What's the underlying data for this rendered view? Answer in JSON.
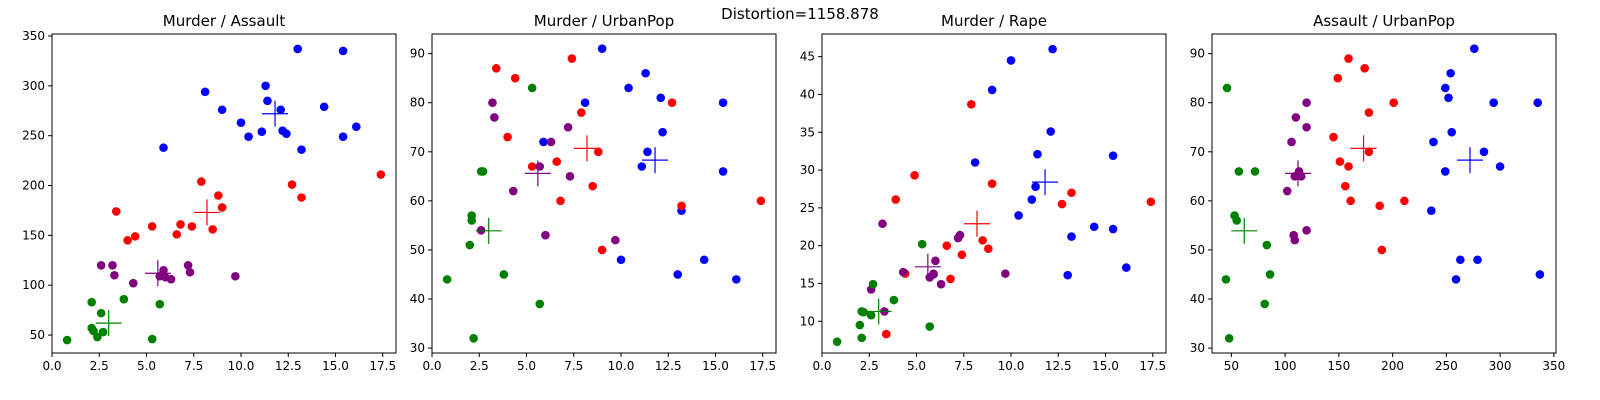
{
  "figure": {
    "suptitle": "Distortion=1158.878",
    "colors": {
      "blue": "#0000ff",
      "red": "#ff0000",
      "green": "#008000",
      "purple": "#800080"
    }
  },
  "chart_data": [
    {
      "type": "scatter",
      "title": "Murder / Assault",
      "xlim": [
        0,
        18.2
      ],
      "ylim": [
        32,
        352
      ],
      "xticks": [
        0.0,
        2.5,
        5.0,
        7.5,
        10.0,
        12.5,
        15.0,
        17.5
      ],
      "xtick_labels": [
        "0.0",
        "2.5",
        "5.0",
        "7.5",
        "10.0",
        "12.5",
        "15.0",
        "17.5"
      ],
      "yticks": [
        50,
        100,
        150,
        200,
        250,
        300,
        350
      ],
      "ytick_labels": [
        "50",
        "100",
        "150",
        "200",
        "250",
        "300",
        "350"
      ],
      "series": [
        {
          "color": "#0000ff",
          "points": [
            [
              13.0,
              337
            ],
            [
              15.4,
              335
            ],
            [
              11.3,
              300
            ],
            [
              8.1,
              294
            ],
            [
              11.4,
              285
            ],
            [
              14.4,
              279
            ],
            [
              12.1,
              276
            ],
            [
              9.0,
              276
            ],
            [
              10.0,
              263
            ],
            [
              16.1,
              259
            ],
            [
              12.2,
              255
            ],
            [
              11.1,
              254
            ],
            [
              12.4,
              252
            ],
            [
              10.4,
              249
            ],
            [
              15.4,
              249
            ],
            [
              13.2,
              236
            ],
            [
              5.9,
              238
            ]
          ]
        },
        {
          "color": "#ff0000",
          "points": [
            [
              17.4,
              211
            ],
            [
              12.7,
              201
            ],
            [
              7.9,
              204
            ],
            [
              8.8,
              190
            ],
            [
              13.2,
              188
            ],
            [
              9.0,
              178
            ],
            [
              8.5,
              156
            ],
            [
              6.8,
              161
            ],
            [
              7.4,
              159
            ],
            [
              6.6,
              151
            ],
            [
              5.3,
              159
            ],
            [
              3.4,
              174
            ],
            [
              4.4,
              149
            ],
            [
              4.0,
              145
            ]
          ]
        },
        {
          "color": "#800080",
          "points": [
            [
              2.6,
              120
            ],
            [
              3.2,
              120
            ],
            [
              5.9,
              115
            ],
            [
              7.2,
              120
            ],
            [
              3.3,
              110
            ],
            [
              7.3,
              113
            ],
            [
              5.7,
              109
            ],
            [
              6.3,
              106
            ],
            [
              9.7,
              109
            ],
            [
              6.0,
              108
            ],
            [
              4.3,
              102
            ]
          ]
        },
        {
          "color": "#008000",
          "points": [
            [
              2.1,
              83
            ],
            [
              3.8,
              86
            ],
            [
              5.7,
              81
            ],
            [
              2.6,
              72
            ],
            [
              2.1,
              57
            ],
            [
              2.2,
              54
            ],
            [
              2.7,
              53
            ],
            [
              2.4,
              48
            ],
            [
              5.3,
              46
            ],
            [
              0.8,
              45
            ]
          ]
        }
      ],
      "centroids": [
        {
          "color": "#0000ff",
          "point": [
            11.8,
            272
          ]
        },
        {
          "color": "#ff0000",
          "point": [
            8.2,
            173
          ]
        },
        {
          "color": "#800080",
          "point": [
            5.6,
            112
          ]
        },
        {
          "color": "#008000",
          "point": [
            3.0,
            62
          ]
        }
      ]
    },
    {
      "type": "scatter",
      "title": "Murder / UrbanPop",
      "xlim": [
        0,
        18.2
      ],
      "ylim": [
        29,
        94
      ],
      "xticks": [
        0.0,
        2.5,
        5.0,
        7.5,
        10.0,
        12.5,
        15.0,
        17.5
      ],
      "xtick_labels": [
        "0.0",
        "2.5",
        "5.0",
        "7.5",
        "10.0",
        "12.5",
        "15.0",
        "17.5"
      ],
      "yticks": [
        30,
        40,
        50,
        60,
        70,
        80,
        90
      ],
      "ytick_labels": [
        "30",
        "40",
        "50",
        "60",
        "70",
        "80",
        "90"
      ],
      "series": [
        {
          "color": "#0000ff",
          "points": [
            [
              9.0,
              91
            ],
            [
              11.3,
              86
            ],
            [
              10.4,
              83
            ],
            [
              12.1,
              81
            ],
            [
              8.1,
              80
            ],
            [
              15.4,
              80
            ],
            [
              12.2,
              74
            ],
            [
              5.9,
              72
            ],
            [
              11.4,
              70
            ],
            [
              11.1,
              67
            ],
            [
              15.4,
              66
            ],
            [
              13.2,
              58
            ],
            [
              10.0,
              48
            ],
            [
              14.4,
              48
            ],
            [
              13.0,
              45
            ],
            [
              16.1,
              44
            ]
          ]
        },
        {
          "color": "#ff0000",
          "points": [
            [
              3.4,
              87
            ],
            [
              7.4,
              89
            ],
            [
              4.4,
              85
            ],
            [
              12.7,
              80
            ],
            [
              7.9,
              78
            ],
            [
              4.0,
              73
            ],
            [
              8.8,
              70
            ],
            [
              6.6,
              68
            ],
            [
              5.3,
              67
            ],
            [
              8.5,
              63
            ],
            [
              6.8,
              60
            ],
            [
              17.4,
              60
            ],
            [
              13.2,
              59
            ],
            [
              9.0,
              50
            ]
          ]
        },
        {
          "color": "#800080",
          "points": [
            [
              3.2,
              80
            ],
            [
              3.3,
              77
            ],
            [
              7.2,
              75
            ],
            [
              6.3,
              72
            ],
            [
              5.7,
              67
            ],
            [
              7.3,
              65
            ],
            [
              4.3,
              62
            ],
            [
              2.6,
              54
            ],
            [
              6.0,
              53
            ],
            [
              9.7,
              52
            ]
          ]
        },
        {
          "color": "#008000",
          "points": [
            [
              5.3,
              83
            ],
            [
              2.6,
              66
            ],
            [
              2.7,
              66
            ],
            [
              2.1,
              57
            ],
            [
              2.1,
              56
            ],
            [
              2.0,
              51
            ],
            [
              3.8,
              45
            ],
            [
              0.8,
              44
            ],
            [
              5.7,
              39
            ],
            [
              2.2,
              32
            ]
          ]
        }
      ],
      "centroids": [
        {
          "color": "#0000ff",
          "point": [
            11.8,
            68.3
          ]
        },
        {
          "color": "#ff0000",
          "point": [
            8.2,
            70.7
          ]
        },
        {
          "color": "#800080",
          "point": [
            5.6,
            65.6
          ]
        },
        {
          "color": "#008000",
          "point": [
            3.0,
            53.9
          ]
        }
      ]
    },
    {
      "type": "scatter",
      "title": "Murder / Rape",
      "xlim": [
        0,
        18.2
      ],
      "ylim": [
        5.8,
        48
      ],
      "xticks": [
        0.0,
        2.5,
        5.0,
        7.5,
        10.0,
        12.5,
        15.0,
        17.5
      ],
      "xtick_labels": [
        "0.0",
        "2.5",
        "5.0",
        "7.5",
        "10.0",
        "12.5",
        "15.0",
        "17.5"
      ],
      "yticks": [
        10,
        15,
        20,
        25,
        30,
        35,
        40,
        45
      ],
      "ytick_labels": [
        "10",
        "15",
        "20",
        "25",
        "30",
        "35",
        "40",
        "45"
      ],
      "series": [
        {
          "color": "#0000ff",
          "points": [
            [
              12.2,
              46.0
            ],
            [
              10.0,
              44.5
            ],
            [
              9.0,
              40.6
            ],
            [
              12.1,
              35.1
            ],
            [
              11.4,
              32.1
            ],
            [
              15.4,
              31.9
            ],
            [
              8.1,
              31.0
            ],
            [
              11.3,
              27.8
            ],
            [
              11.1,
              26.1
            ],
            [
              10.4,
              24.0
            ],
            [
              14.4,
              22.5
            ],
            [
              15.4,
              22.2
            ],
            [
              13.2,
              21.2
            ],
            [
              16.1,
              17.1
            ],
            [
              13.0,
              16.1
            ],
            [
              5.9,
              16.2
            ]
          ]
        },
        {
          "color": "#ff0000",
          "points": [
            [
              7.9,
              38.7
            ],
            [
              4.9,
              29.3
            ],
            [
              9.0,
              28.2
            ],
            [
              13.2,
              27.0
            ],
            [
              3.9,
              26.1
            ],
            [
              17.4,
              25.8
            ],
            [
              12.7,
              25.5
            ],
            [
              8.5,
              20.7
            ],
            [
              6.6,
              20.0
            ],
            [
              8.8,
              19.6
            ],
            [
              7.4,
              18.8
            ],
            [
              6.8,
              15.6
            ],
            [
              4.4,
              16.3
            ],
            [
              3.4,
              8.3
            ]
          ]
        },
        {
          "color": "#800080",
          "points": [
            [
              3.2,
              22.9
            ],
            [
              7.3,
              21.4
            ],
            [
              7.2,
              21.0
            ],
            [
              6.0,
              18.0
            ],
            [
              4.3,
              16.5
            ],
            [
              9.7,
              16.3
            ],
            [
              5.9,
              16.3
            ],
            [
              5.7,
              15.8
            ],
            [
              6.3,
              14.9
            ],
            [
              3.3,
              11.3
            ],
            [
              2.6,
              14.2
            ]
          ]
        },
        {
          "color": "#008000",
          "points": [
            [
              5.3,
              20.2
            ],
            [
              2.7,
              14.9
            ],
            [
              3.8,
              12.8
            ],
            [
              2.1,
              11.3
            ],
            [
              2.2,
              11.2
            ],
            [
              2.6,
              10.8
            ],
            [
              2.0,
              9.5
            ],
            [
              5.7,
              9.3
            ],
            [
              2.1,
              7.8
            ],
            [
              0.8,
              7.3
            ]
          ]
        }
      ],
      "centroids": [
        {
          "color": "#0000ff",
          "point": [
            11.8,
            28.4
          ]
        },
        {
          "color": "#ff0000",
          "point": [
            8.2,
            22.9
          ]
        },
        {
          "color": "#800080",
          "point": [
            5.6,
            17.2
          ]
        },
        {
          "color": "#008000",
          "point": [
            3.0,
            11.3
          ]
        }
      ]
    },
    {
      "type": "scatter",
      "title": "Assault / UrbanPop",
      "xlim": [
        32,
        352
      ],
      "ylim": [
        29,
        94
      ],
      "xticks": [
        50,
        100,
        150,
        200,
        250,
        300,
        350
      ],
      "xtick_labels": [
        "50",
        "100",
        "150",
        "200",
        "250",
        "300",
        "350"
      ],
      "yticks": [
        30,
        40,
        50,
        60,
        70,
        80,
        90
      ],
      "ytick_labels": [
        "30",
        "40",
        "50",
        "60",
        "70",
        "80",
        "90"
      ],
      "series": [
        {
          "color": "#0000ff",
          "points": [
            [
              276,
              91
            ],
            [
              254,
              86
            ],
            [
              249,
              83
            ],
            [
              252,
              81
            ],
            [
              294,
              80
            ],
            [
              335,
              80
            ],
            [
              255,
              74
            ],
            [
              238,
              72
            ],
            [
              285,
              70
            ],
            [
              300,
              67
            ],
            [
              249,
              66
            ],
            [
              263,
              48
            ],
            [
              279,
              48
            ],
            [
              259,
              44
            ],
            [
              337,
              45
            ],
            [
              236,
              58
            ]
          ]
        },
        {
          "color": "#ff0000",
          "points": [
            [
              159,
              89
            ],
            [
              174,
              87
            ],
            [
              149,
              85
            ],
            [
              201,
              80
            ],
            [
              178,
              78
            ],
            [
              145,
              73
            ],
            [
              178,
              70
            ],
            [
              151,
              68
            ],
            [
              159,
              67
            ],
            [
              156,
              63
            ],
            [
              161,
              60
            ],
            [
              211,
              60
            ],
            [
              188,
              59
            ],
            [
              190,
              50
            ]
          ]
        },
        {
          "color": "#800080",
          "points": [
            [
              120,
              80
            ],
            [
              110,
              77
            ],
            [
              120,
              75
            ],
            [
              106,
              72
            ],
            [
              113,
              66
            ],
            [
              115,
              65
            ],
            [
              109,
              65
            ],
            [
              102,
              62
            ],
            [
              120,
              54
            ],
            [
              108,
              53
            ],
            [
              109,
              52
            ]
          ]
        },
        {
          "color": "#008000",
          "points": [
            [
              46,
              83
            ],
            [
              72,
              66
            ],
            [
              57,
              66
            ],
            [
              53,
              57
            ],
            [
              55,
              56
            ],
            [
              83,
              51
            ],
            [
              86,
              45
            ],
            [
              45,
              44
            ],
            [
              81,
              39
            ],
            [
              48,
              32
            ]
          ]
        }
      ],
      "centroids": [
        {
          "color": "#0000ff",
          "point": [
            272,
            68.3
          ]
        },
        {
          "color": "#ff0000",
          "point": [
            173,
            70.7
          ]
        },
        {
          "color": "#800080",
          "point": [
            112,
            65.6
          ]
        },
        {
          "color": "#008000",
          "point": [
            62,
            53.9
          ]
        }
      ]
    }
  ]
}
